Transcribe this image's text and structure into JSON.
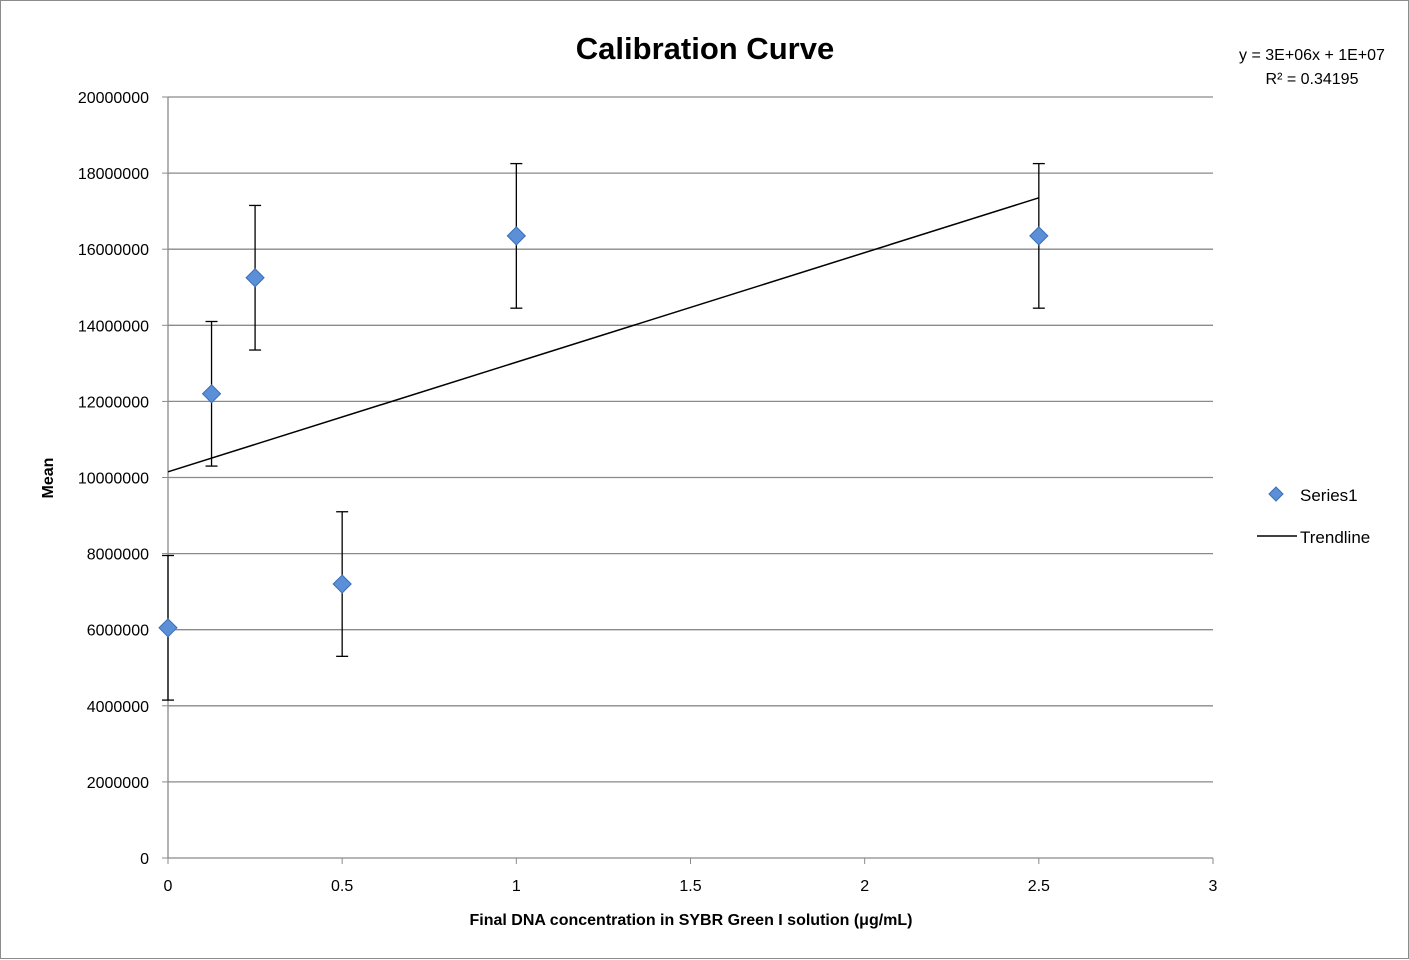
{
  "chart_data": {
    "type": "scatter",
    "title": "Calibration Curve",
    "xlabel": "Final DNA concentration in SYBR Green I solution (μg/mL)",
    "ylabel": "Mean",
    "xlim": [
      0,
      3
    ],
    "ylim": [
      0,
      20000000
    ],
    "x_ticks": [
      "0",
      "0.5",
      "1",
      "1.5",
      "2",
      "2.5",
      "3"
    ],
    "y_ticks": [
      "0",
      "2000000",
      "4000000",
      "6000000",
      "8000000",
      "10000000",
      "12000000",
      "14000000",
      "16000000",
      "18000000",
      "20000000"
    ],
    "grid": "horizontal major gridlines",
    "legend_position": "right",
    "series": [
      {
        "name": "Series1",
        "marker": "diamond",
        "color": "#5b8fd8",
        "points": [
          {
            "x": 0,
            "y": 6050000,
            "err": 1900000
          },
          {
            "x": 0.125,
            "y": 12200000,
            "err": 1900000
          },
          {
            "x": 0.25,
            "y": 15250000,
            "err": 1900000
          },
          {
            "x": 0.5,
            "y": 7200000,
            "err": 1900000
          },
          {
            "x": 1,
            "y": 16350000,
            "err": 1900000
          },
          {
            "x": 2.5,
            "y": 16350000,
            "err": 1900000
          }
        ]
      }
    ],
    "trendline": {
      "name": "Trendline",
      "color": "#000000",
      "x_start": 0,
      "x_end": 2.5,
      "y_start": 10150000,
      "y_end": 17350000,
      "equation": "y = 3E+06x + 1E+07",
      "r_squared": "R² = 0.34195"
    }
  }
}
